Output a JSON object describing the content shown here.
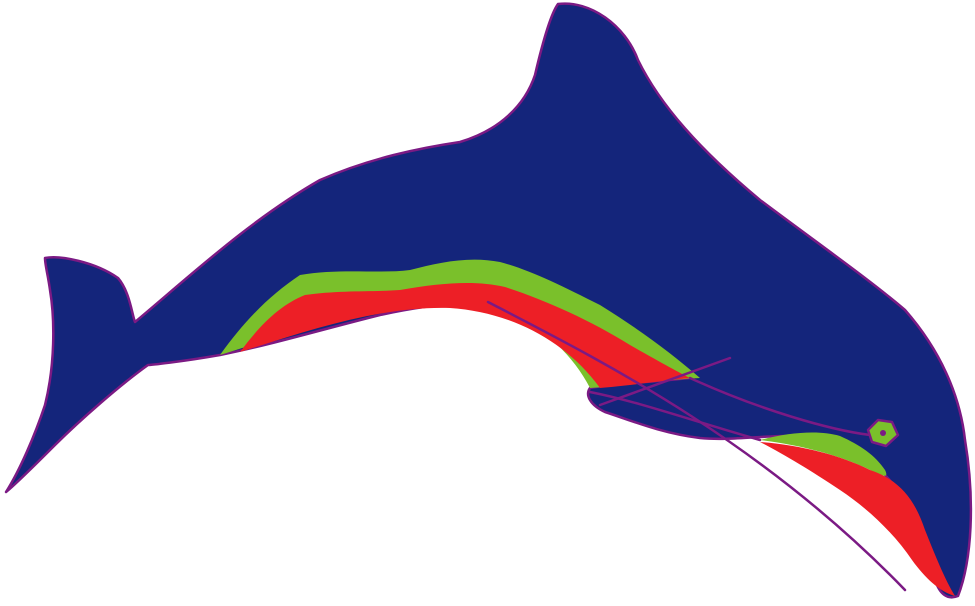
{
  "image": {
    "subject": "dolphin",
    "palette": {
      "background": "#ffffff",
      "body": "#14257b",
      "outline": "#7b1a84",
      "belly_stripe_green": "#7ac02b",
      "belly_red": "#ed1f26",
      "eye_fill": "#7ac02b"
    }
  }
}
